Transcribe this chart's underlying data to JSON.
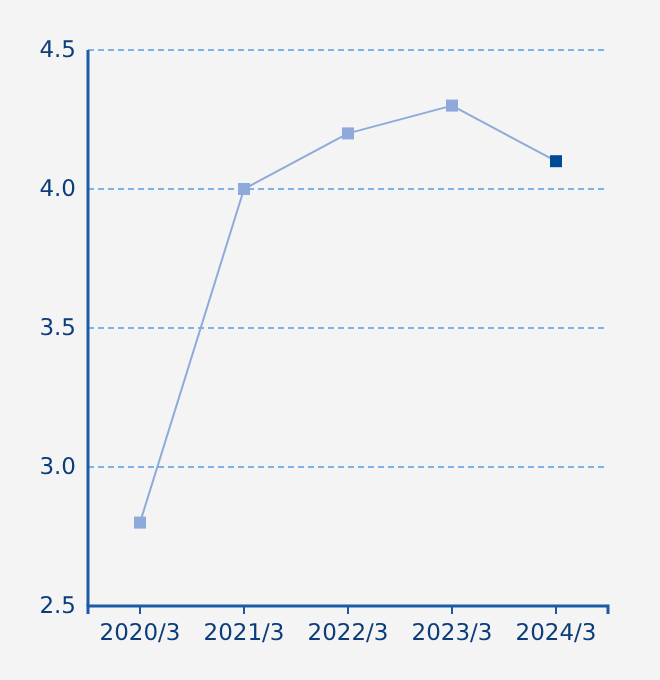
{
  "chart_data": {
    "type": "line",
    "categories": [
      "2020/3",
      "2021/3",
      "2022/3",
      "2023/3",
      "2024/3"
    ],
    "series": [
      {
        "color": "#8eaadb",
        "colors": [
          "#8eaadb",
          "#8eaadb",
          "#8eaadb",
          "#8eaadb",
          "#004a97"
        ],
        "values": [
          2.8,
          4.0,
          4.2,
          4.3,
          4.1
        ]
      }
    ],
    "ylim": [
      2.5,
      4.5
    ],
    "yticks": [
      2.5,
      {
        "value": 3,
        "label": "3.0"
      },
      3.5,
      {
        "value": 4,
        "label": "4.0"
      },
      4.5
    ],
    "grid": "y",
    "marker": "square",
    "line_style": "solid"
  }
}
